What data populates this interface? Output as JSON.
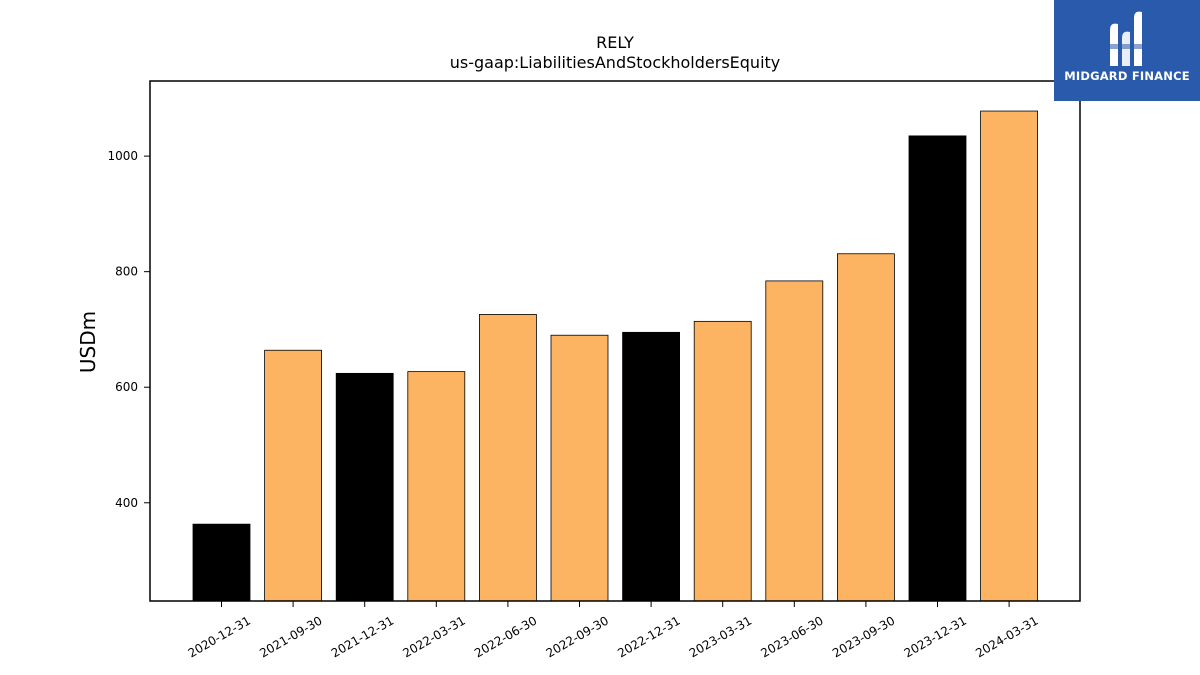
{
  "logo": {
    "text": "MIDGARD FINANCE",
    "icon": "midgard-logo-icon",
    "background": "#2a5aab"
  },
  "chart_data": {
    "type": "bar",
    "title": "RELY",
    "subtitle": "us-gaap:LiabilitiesAndStockholdersEquity",
    "xlabel": "",
    "ylabel": "USDm",
    "ylim": [
      230,
      1130
    ],
    "yticks": [
      400,
      600,
      800,
      1000
    ],
    "grid": false,
    "categories": [
      "2020-12-31",
      "2021-09-30",
      "2021-12-31",
      "2022-03-31",
      "2022-06-30",
      "2022-09-30",
      "2022-12-31",
      "2023-03-31",
      "2023-06-30",
      "2023-09-30",
      "2023-12-31",
      "2024-03-31"
    ],
    "values": [
      363,
      664,
      624,
      627,
      726,
      690,
      695,
      714,
      784,
      831,
      1035,
      1078
    ],
    "colors": [
      "#000000",
      "#fdb462",
      "#000000",
      "#fdb462",
      "#fdb462",
      "#fdb462",
      "#000000",
      "#fdb462",
      "#fdb462",
      "#fdb462",
      "#000000",
      "#fdb462"
    ]
  }
}
